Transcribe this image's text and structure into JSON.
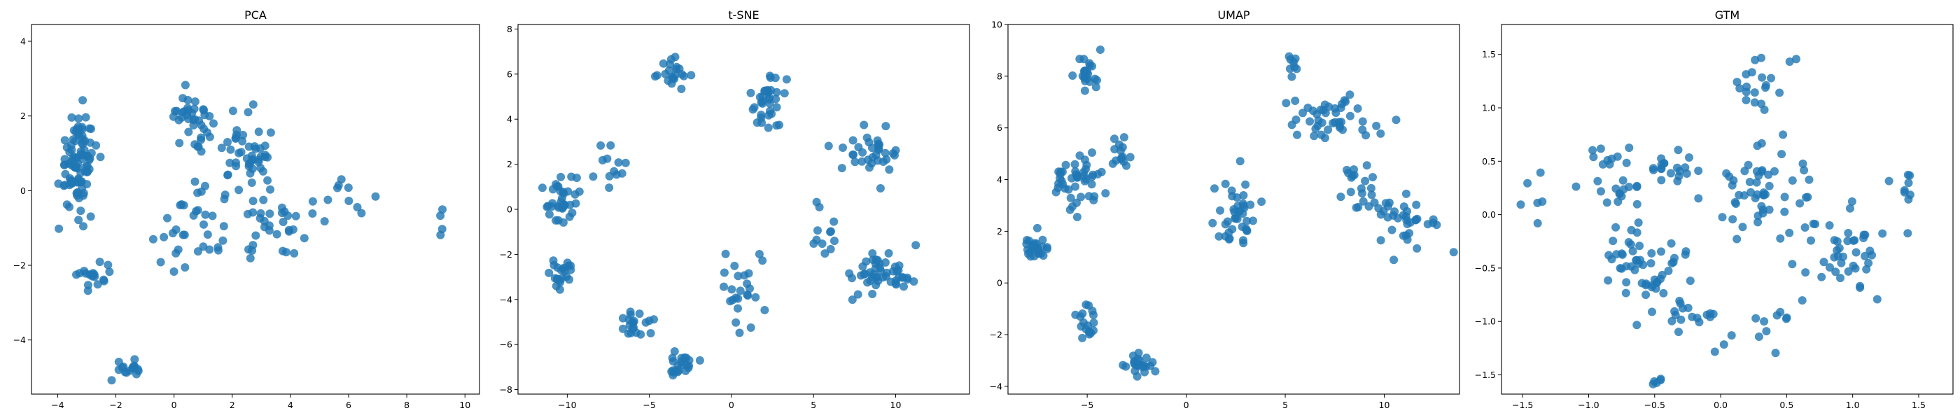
{
  "chart_data": [
    {
      "type": "scatter",
      "title": "PCA",
      "xlabel": "",
      "ylabel": "",
      "xlim": [
        -4.9,
        10.5
      ],
      "ylim": [
        -5.45,
        4.45
      ],
      "xticks": [
        -4,
        -2,
        0,
        2,
        4,
        6,
        8,
        10
      ],
      "yticks": [
        -4,
        -2,
        0,
        2,
        4
      ],
      "color": "#1f77b4",
      "clusters": [
        {
          "cx": -3.3,
          "cy": 0.8,
          "sx": 0.6,
          "sy": 1.2,
          "n": 95
        },
        {
          "cx": -2.7,
          "cy": -2.3,
          "sx": 0.5,
          "sy": 0.35,
          "n": 18
        },
        {
          "cx": -1.5,
          "cy": -4.8,
          "sx": 0.45,
          "sy": 0.25,
          "n": 16
        },
        {
          "cx": 0.6,
          "cy": 2.0,
          "sx": 0.7,
          "sy": 0.55,
          "n": 38
        },
        {
          "cx": 0.5,
          "cy": -1.3,
          "sx": 1.0,
          "sy": 1.1,
          "n": 32
        },
        {
          "cx": 2.5,
          "cy": 0.9,
          "sx": 1.1,
          "sy": 1.0,
          "n": 50
        },
        {
          "cx": 3.4,
          "cy": -1.1,
          "sx": 0.9,
          "sy": 0.7,
          "n": 30
        },
        {
          "cx": 5.8,
          "cy": -0.3,
          "sx": 1.1,
          "sy": 0.9,
          "n": 12
        },
        {
          "cx": 9.2,
          "cy": -0.9,
          "sx": 0.5,
          "sy": 0.5,
          "n": 4
        }
      ]
    },
    {
      "type": "scatter",
      "title": "t-SNE",
      "xlabel": "",
      "ylabel": "",
      "xlim": [
        -13.0,
        14.5
      ],
      "ylim": [
        -8.2,
        8.2
      ],
      "xticks": [
        -10,
        -5,
        0,
        5,
        10
      ],
      "yticks": [
        -8,
        -6,
        -4,
        -2,
        0,
        2,
        4,
        6,
        8
      ],
      "color": "#1f77b4",
      "clusters": [
        {
          "cx": -10.4,
          "cy": 0.5,
          "sx": 0.9,
          "sy": 1.0,
          "n": 35
        },
        {
          "cx": -10.2,
          "cy": -2.8,
          "sx": 0.7,
          "sy": 0.6,
          "n": 22
        },
        {
          "cx": -7.3,
          "cy": 1.7,
          "sx": 0.7,
          "sy": 0.9,
          "n": 12
        },
        {
          "cx": -3.5,
          "cy": 6.1,
          "sx": 0.8,
          "sy": 0.6,
          "n": 22
        },
        {
          "cx": -6.0,
          "cy": -5.0,
          "sx": 1.0,
          "sy": 0.6,
          "n": 20
        },
        {
          "cx": -3.0,
          "cy": -7.0,
          "sx": 0.8,
          "sy": 0.4,
          "n": 22
        },
        {
          "cx": 0.5,
          "cy": -3.5,
          "sx": 1.5,
          "sy": 2.0,
          "n": 25
        },
        {
          "cx": 2.3,
          "cy": 4.8,
          "sx": 1.0,
          "sy": 1.2,
          "n": 35
        },
        {
          "cx": 8.3,
          "cy": 2.6,
          "sx": 1.7,
          "sy": 1.0,
          "n": 35
        },
        {
          "cx": 9.0,
          "cy": -2.8,
          "sx": 2.0,
          "sy": 0.9,
          "n": 50
        },
        {
          "cx": 5.5,
          "cy": -0.5,
          "sx": 0.7,
          "sy": 1.6,
          "n": 12
        }
      ]
    },
    {
      "type": "scatter",
      "title": "UMAP",
      "xlabel": "",
      "ylabel": "",
      "xlim": [
        -9.0,
        13.8
      ],
      "ylim": [
        -4.3,
        10.0
      ],
      "xticks": [
        -5,
        0,
        5,
        10
      ],
      "yticks": [
        -4,
        -2,
        0,
        2,
        4,
        6,
        8,
        10
      ],
      "color": "#1f77b4",
      "clusters": [
        {
          "cx": -5.0,
          "cy": 8.0,
          "sx": 0.5,
          "sy": 0.8,
          "n": 22
        },
        {
          "cx": -5.5,
          "cy": 4.0,
          "sx": 1.3,
          "sy": 1.0,
          "n": 45
        },
        {
          "cx": -3.2,
          "cy": 5.2,
          "sx": 0.6,
          "sy": 0.6,
          "n": 14
        },
        {
          "cx": -7.5,
          "cy": 1.3,
          "sx": 0.8,
          "sy": 0.5,
          "n": 25
        },
        {
          "cx": -5.0,
          "cy": -1.5,
          "sx": 0.5,
          "sy": 0.8,
          "n": 18
        },
        {
          "cx": -2.5,
          "cy": -3.2,
          "sx": 0.8,
          "sy": 0.4,
          "n": 22
        },
        {
          "cx": 2.5,
          "cy": 2.8,
          "sx": 1.0,
          "sy": 1.3,
          "n": 40
        },
        {
          "cx": 5.3,
          "cy": 8.5,
          "sx": 0.4,
          "sy": 0.4,
          "n": 8
        },
        {
          "cx": 7.5,
          "cy": 6.3,
          "sx": 2.0,
          "sy": 0.8,
          "n": 45
        },
        {
          "cx": 8.8,
          "cy": 3.6,
          "sx": 1.2,
          "sy": 1.0,
          "n": 20
        },
        {
          "cx": 11.2,
          "cy": 2.5,
          "sx": 1.3,
          "sy": 1.0,
          "n": 35
        }
      ]
    },
    {
      "type": "scatter",
      "title": "GTM",
      "xlabel": "",
      "ylabel": "",
      "xlim": [
        -1.66,
        1.76
      ],
      "ylim": [
        -1.68,
        1.78
      ],
      "xticks": [
        -1.5,
        -1.0,
        -0.5,
        0.0,
        0.5,
        1.0,
        1.5
      ],
      "yticks": [
        -1.5,
        -1.0,
        -0.5,
        0.0,
        0.5,
        1.0,
        1.5
      ],
      "color": "#1f77b4",
      "clusters": [
        {
          "cx": -1.4,
          "cy": 0.2,
          "sx": 0.1,
          "sy": 0.3,
          "n": 6
        },
        {
          "cx": -0.8,
          "cy": 0.35,
          "sx": 0.2,
          "sy": 0.35,
          "n": 25
        },
        {
          "cx": -0.6,
          "cy": -0.5,
          "sx": 0.25,
          "sy": 0.4,
          "n": 55
        },
        {
          "cx": -0.3,
          "cy": 0.4,
          "sx": 0.2,
          "sy": 0.25,
          "n": 20
        },
        {
          "cx": -0.25,
          "cy": -0.95,
          "sx": 0.22,
          "sy": 0.1,
          "n": 14
        },
        {
          "cx": -0.5,
          "cy": -1.55,
          "sx": 0.08,
          "sy": 0.06,
          "n": 5
        },
        {
          "cx": 0.25,
          "cy": 1.2,
          "sx": 0.2,
          "sy": 0.25,
          "n": 20
        },
        {
          "cx": 0.35,
          "cy": 0.2,
          "sx": 0.3,
          "sy": 0.45,
          "n": 50
        },
        {
          "cx": 0.9,
          "cy": -0.3,
          "sx": 0.35,
          "sy": 0.45,
          "n": 45
        },
        {
          "cx": 1.4,
          "cy": 0.3,
          "sx": 0.1,
          "sy": 0.3,
          "n": 8
        },
        {
          "cx": 0.3,
          "cy": -1.1,
          "sx": 0.3,
          "sy": 0.2,
          "n": 12
        }
      ]
    }
  ]
}
